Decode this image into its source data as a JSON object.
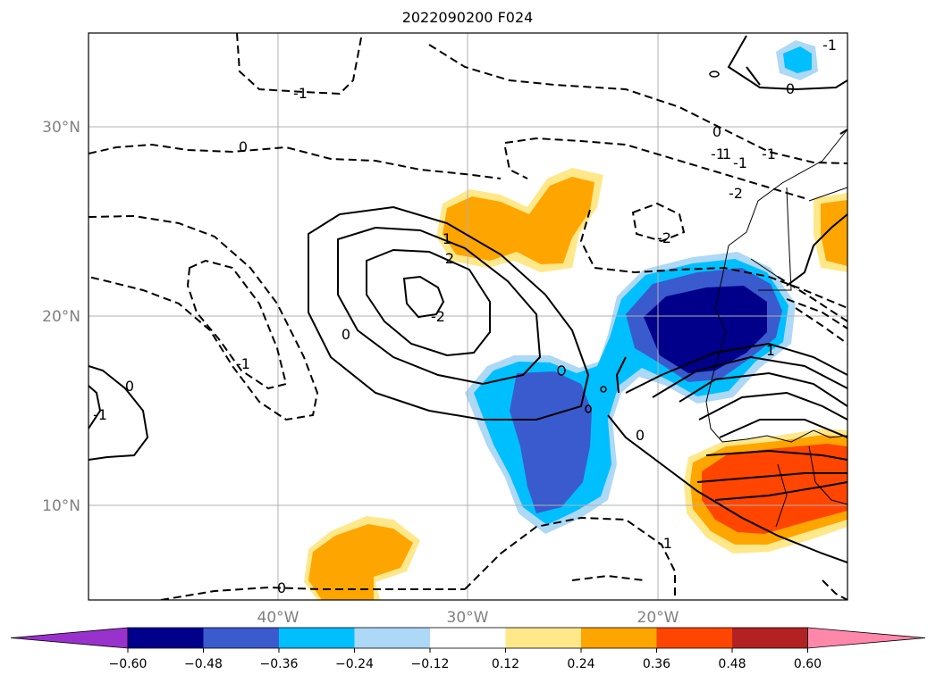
{
  "title": "2022090200 F024",
  "lat_labels": [
    "30°N",
    "20°N",
    "10°N"
  ],
  "lon_labels": [
    "40°W",
    "30°W",
    "20°W"
  ],
  "contour_labels": [
    "-1",
    "0",
    "-1",
    "-1",
    "0",
    "1",
    "2",
    "-2",
    "0",
    "-2",
    "-1",
    "1",
    "0",
    "-1",
    "-2",
    "-1",
    "-1",
    "0",
    "1",
    "-1",
    "0",
    "0"
  ],
  "colorbar": {
    "ticks": [
      "−0.60",
      "−0.48",
      "−0.36",
      "−0.24",
      "−0.12",
      "0.12",
      "0.24",
      "0.36",
      "0.48",
      "0.60"
    ],
    "colors": [
      "#9932cc",
      "#00008b",
      "#3a5bcd",
      "#00bfff",
      "#add8f6",
      "#ffffff",
      "#ffe88a",
      "#ffa500",
      "#ff4500",
      "#b22222",
      "#ff88aa"
    ]
  },
  "colors": {
    "frame": "#000000",
    "grid": "#b0b0b0",
    "tick_label": "#808080"
  }
}
